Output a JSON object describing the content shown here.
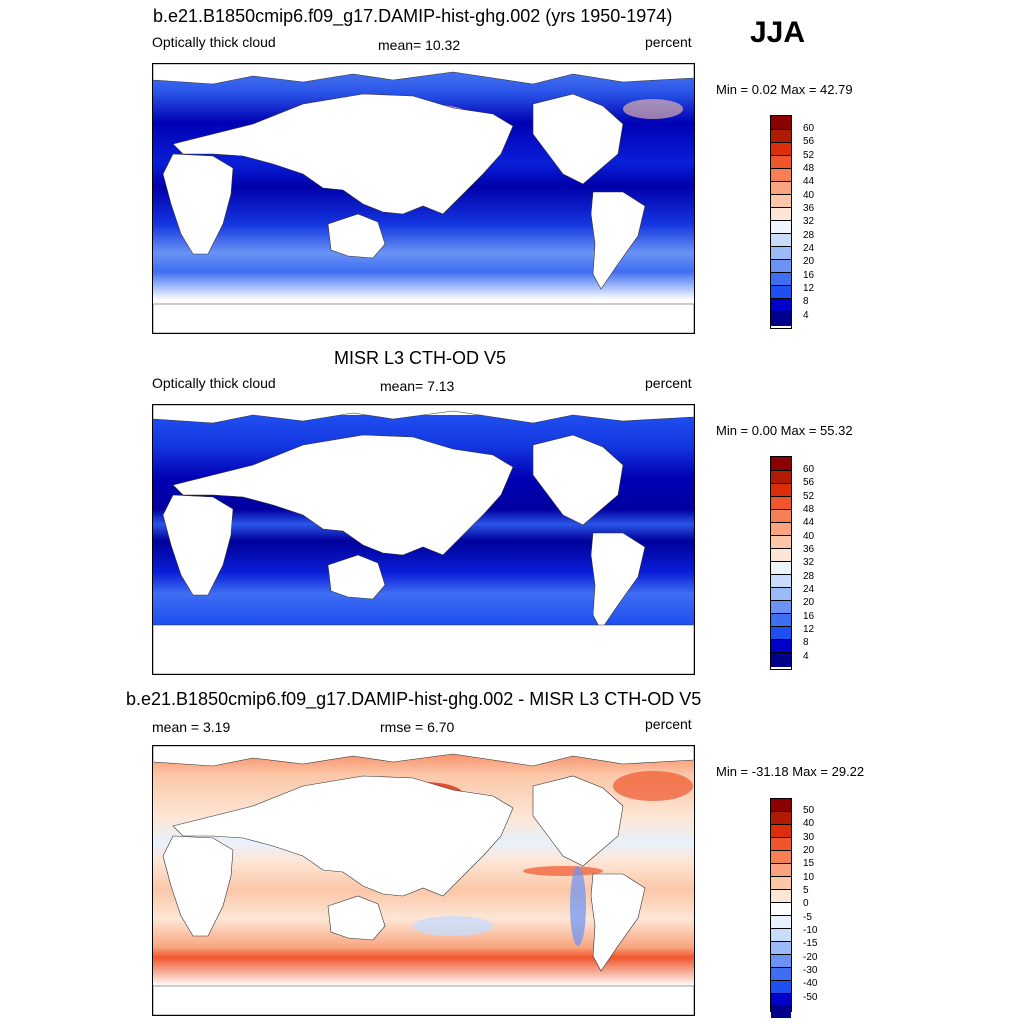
{
  "season": "JJA",
  "unit": "percent",
  "panels": [
    {
      "title": "b.e21.B1850cmip6.f09_g17.DAMIP-hist-ghg.002 (yrs 1950-1974)",
      "left_text": "Optically thick cloud",
      "center_text": "mean=  10.32",
      "right_text": "percent",
      "minmax": "Min =   0.02 Max =  42.79",
      "colorbar_labels": [
        "60",
        "56",
        "52",
        "48",
        "44",
        "40",
        "36",
        "32",
        "28",
        "24",
        "20",
        "16",
        "12",
        "8",
        "4"
      ]
    },
    {
      "title": "MISR L3 CTH-OD V5",
      "left_text": "Optically thick cloud",
      "center_text": "mean=   7.13",
      "right_text": "percent",
      "minmax": "Min =   0.00 Max =  55.32",
      "colorbar_labels": [
        "60",
        "56",
        "52",
        "48",
        "44",
        "40",
        "36",
        "32",
        "28",
        "24",
        "20",
        "16",
        "12",
        "8",
        "4"
      ]
    },
    {
      "title": "b.e21.B1850cmip6.f09_g17.DAMIP-hist-ghg.002 - MISR L3 CTH-OD V5",
      "left_text": "mean =   3.19",
      "center_text": "rmse =    6.70",
      "right_text": "percent",
      "minmax": "Min = -31.18 Max =  29.22",
      "colorbar_labels": [
        "50",
        "40",
        "30",
        "20",
        "15",
        "10",
        "5",
        "0",
        "-5",
        "-10",
        "-15",
        "-20",
        "-30",
        "-40",
        "-50"
      ]
    }
  ],
  "colors": {
    "abs_scale": [
      "#00008b",
      "#0000c8",
      "#0d2de6",
      "#1e4ff0",
      "#3e6ef2",
      "#6a93f5",
      "#9bbaf8",
      "#c8dcfb",
      "#eef5fd",
      "#fde6d6",
      "#fbc7a8",
      "#f9a47e",
      "#f67f55",
      "#f0552c",
      "#dd2e0c",
      "#b01b04",
      "#8b0000"
    ],
    "diff_scale": [
      "#00008b",
      "#0000c8",
      "#0d2de6",
      "#1e4ff0",
      "#3e6ef2",
      "#6a93f5",
      "#9bbaf8",
      "#c8dcfb",
      "#e8f1fd",
      "#ffffff",
      "#fde6d6",
      "#fbc7a8",
      "#f9a47e",
      "#f67f55",
      "#f0552c",
      "#dd2e0c",
      "#b01b04",
      "#8b0000"
    ]
  }
}
